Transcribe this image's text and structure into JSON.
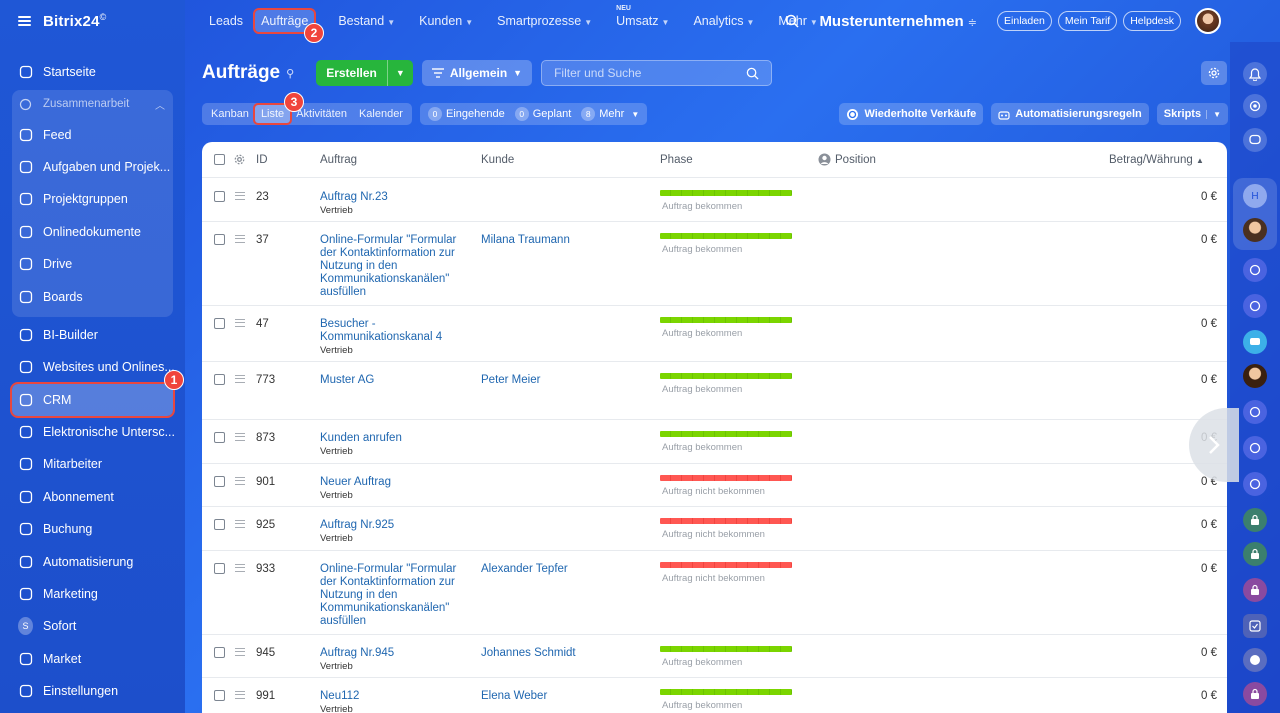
{
  "app": {
    "logo": "Bitrix24",
    "logo_mark": "©"
  },
  "sidebar": {
    "items_top": [
      {
        "label": "Startseite",
        "icon": "home-icon"
      }
    ],
    "group": {
      "label": "Zusammenarbeit",
      "items": [
        {
          "label": "Feed",
          "icon": "feed-icon"
        },
        {
          "label": "Aufgaben und Projek...",
          "icon": "tasks-icon"
        },
        {
          "label": "Projektgruppen",
          "icon": "groups-icon"
        },
        {
          "label": "Onlinedokumente",
          "icon": "documents-icon"
        },
        {
          "label": "Drive",
          "icon": "drive-icon"
        },
        {
          "label": "Boards",
          "icon": "boards-icon"
        }
      ]
    },
    "items": [
      {
        "label": "BI-Builder",
        "icon": "bi-chart-icon"
      },
      {
        "label": "Websites und Onlines...",
        "icon": "cart-icon"
      },
      {
        "label": "CRM",
        "icon": "crm-funnel-icon",
        "active": true
      },
      {
        "label": "Elektronische Untersc...",
        "icon": "signature-icon"
      },
      {
        "label": "Mitarbeiter",
        "icon": "employees-icon"
      },
      {
        "label": "Abonnement",
        "icon": "subscription-icon"
      },
      {
        "label": "Buchung",
        "icon": "booking-icon"
      },
      {
        "label": "Automatisierung",
        "icon": "automation-icon"
      },
      {
        "label": "Marketing",
        "icon": "marketing-icon"
      },
      {
        "label": "Sofort",
        "icon": "sofort-avatar",
        "avatar_letter": "S"
      },
      {
        "label": "Market",
        "icon": "market-icon"
      },
      {
        "label": "Einstellungen",
        "icon": "settings-icon"
      }
    ]
  },
  "topnav": {
    "items": [
      {
        "label": "Leads",
        "caret": false
      },
      {
        "label": "Aufträge",
        "caret": false,
        "active": true
      },
      {
        "label": "Bestand",
        "caret": true
      },
      {
        "label": "Kunden",
        "caret": true
      },
      {
        "label": "Smartprozesse",
        "caret": true
      },
      {
        "label": "Umsatz",
        "caret": true,
        "tag": "NEU"
      },
      {
        "label": "Analytics",
        "caret": true
      },
      {
        "label": "Mehr",
        "caret": true
      }
    ],
    "company": "Musterunternehmen",
    "buttons": [
      "Einladen",
      "Mein Tarif",
      "Helpdesk"
    ]
  },
  "toolbar": {
    "title": "Aufträge",
    "create_label": "Erstellen",
    "filter_label": "Allgemein",
    "search_placeholder": "Filter und Suche"
  },
  "views": {
    "tabs": [
      "Kanban",
      "Liste",
      "Aktivitäten",
      "Kalender"
    ],
    "active": "Liste",
    "counters": [
      {
        "count": "0",
        "label": "Eingehende"
      },
      {
        "count": "0",
        "label": "Geplant"
      },
      {
        "count": "8",
        "label": "Mehr"
      }
    ],
    "actions": [
      "Wiederholte Verkäufe",
      "Automatisierungsregeln",
      "Skripts"
    ]
  },
  "table": {
    "columns": {
      "id": "ID",
      "deal": "Auftrag",
      "client": "Kunde",
      "phase": "Phase",
      "position": "Position",
      "amount": "Betrag/Währung"
    },
    "rows": [
      {
        "id": "23",
        "title": [
          "Auftrag Nr.23"
        ],
        "sub": "Vertrieb",
        "client": "",
        "phase": "Auftrag bekommen",
        "status": "won",
        "amount": "0 €"
      },
      {
        "id": "37",
        "title": [
          "Online-Formular \"Formular",
          "der Kontaktinformation zur",
          "Nutzung in den",
          "Kommunikationskanälen\"",
          "ausfüllen"
        ],
        "sub": "",
        "client": "Milana Traumann",
        "phase": "Auftrag bekommen",
        "status": "won",
        "amount": "0 €"
      },
      {
        "id": "47",
        "title": [
          "Besucher -",
          "Kommunikationskanal 4"
        ],
        "sub": "Vertrieb",
        "client": "",
        "phase": "Auftrag bekommen",
        "status": "won",
        "amount": "0 €"
      },
      {
        "id": "773",
        "title": [
          "Muster AG"
        ],
        "sub": "",
        "client": "Peter Meier",
        "phase": "Auftrag bekommen",
        "status": "won",
        "amount": "0 €"
      },
      {
        "id": "873",
        "title": [
          "Kunden anrufen"
        ],
        "sub": "Vertrieb",
        "client": "",
        "phase": "Auftrag bekommen",
        "status": "won",
        "amount": "0 €"
      },
      {
        "id": "901",
        "title": [
          "Neuer Auftrag"
        ],
        "sub": "Vertrieb",
        "client": "",
        "phase": "Auftrag nicht bekommen",
        "status": "lost",
        "amount": "0 €"
      },
      {
        "id": "925",
        "title": [
          "Auftrag Nr.925"
        ],
        "sub": "Vertrieb",
        "client": "",
        "phase": "Auftrag nicht bekommen",
        "status": "lost",
        "amount": "0 €"
      },
      {
        "id": "933",
        "title": [
          "Online-Formular \"Formular",
          "der Kontaktinformation zur",
          "Nutzung in den",
          "Kommunikationskanälen\"",
          "ausfüllen"
        ],
        "sub": "",
        "client": "Alexander Tepfer",
        "phase": "Auftrag nicht bekommen",
        "status": "lost",
        "amount": "0 €"
      },
      {
        "id": "945",
        "title": [
          "Auftrag Nr.945"
        ],
        "sub": "Vertrieb",
        "client": "Johannes Schmidt",
        "phase": "Auftrag bekommen",
        "status": "won",
        "amount": "0 €"
      },
      {
        "id": "991",
        "title": [
          "Neu112"
        ],
        "sub": "Vertrieb",
        "client": "Elena Weber",
        "phase": "Auftrag bekommen",
        "status": "won",
        "amount": "0 €"
      }
    ]
  },
  "annotations": [
    "1",
    "2",
    "3"
  ],
  "colors": {
    "accent_green": "#27b53c",
    "phase_won": "#7bd500",
    "phase_lost": "#ff5752",
    "highlight": "#e8473f",
    "link": "#2067b0"
  }
}
